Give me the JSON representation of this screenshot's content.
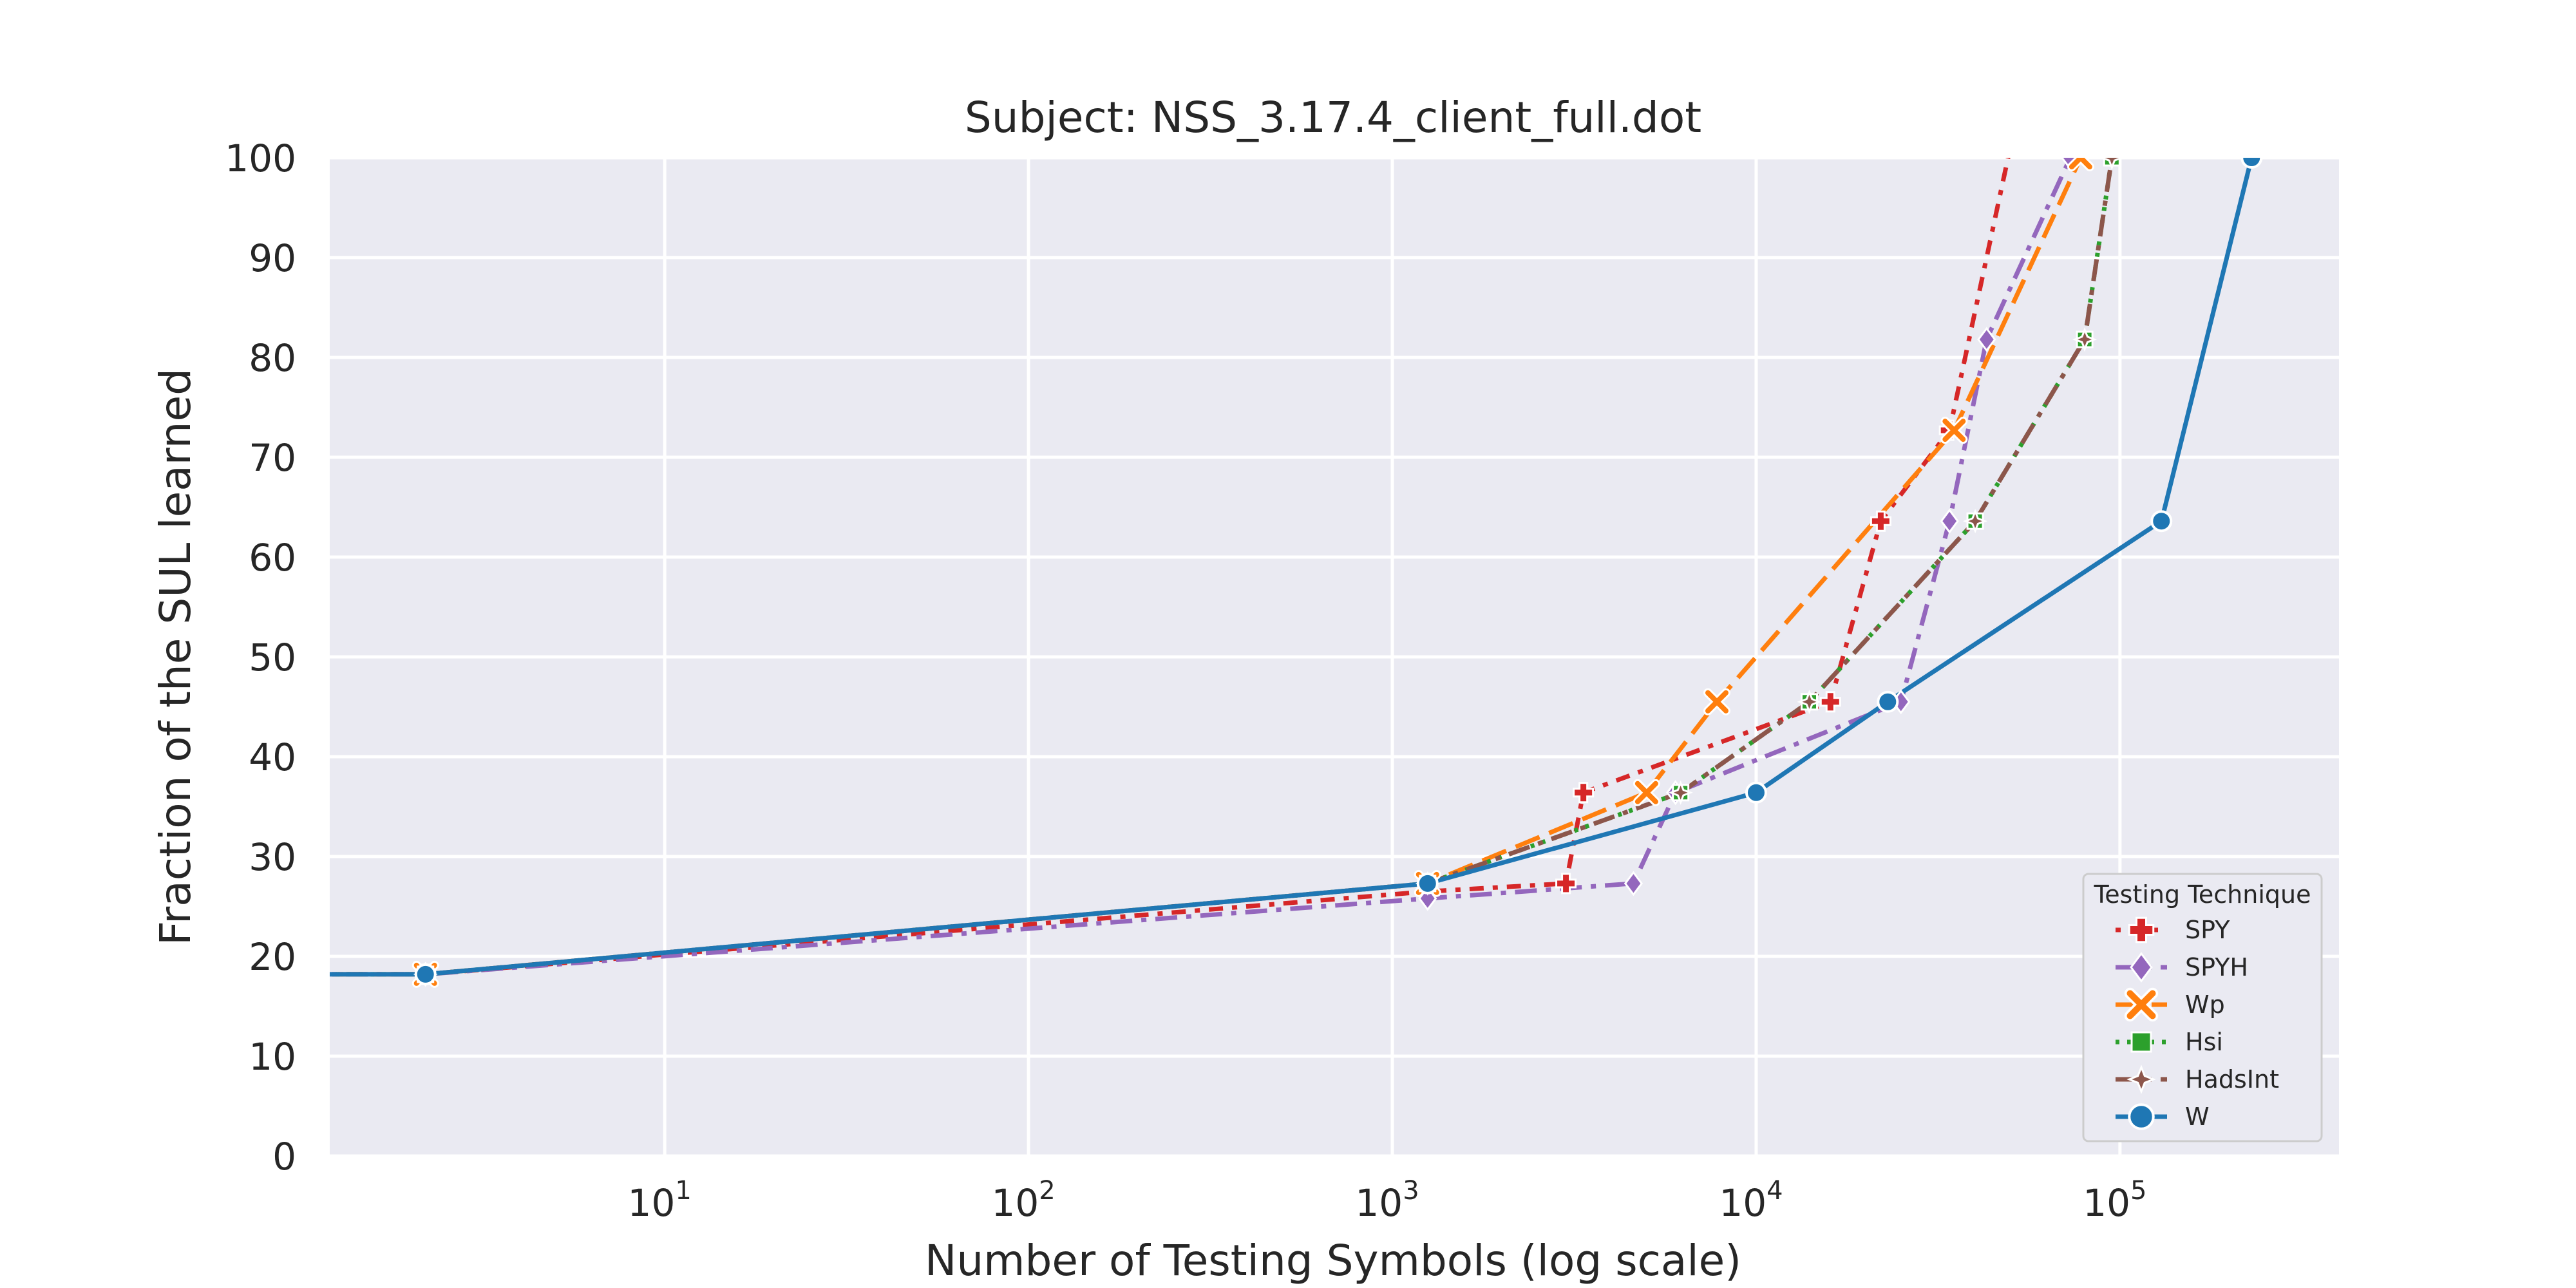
{
  "chart_data": {
    "type": "line",
    "title": "Subject: NSS_3.17.4_client_full.dot",
    "xlabel": "Number of Testing Symbols (log scale)",
    "ylabel": "Fraction of the SUL learned",
    "x_scale": "log",
    "xlim": [
      1.2,
      400000
    ],
    "ylim": [
      0,
      100
    ],
    "x_ticks": [
      {
        "value": 10,
        "base": "10",
        "exp": "1"
      },
      {
        "value": 100,
        "base": "10",
        "exp": "2"
      },
      {
        "value": 1000,
        "base": "10",
        "exp": "3"
      },
      {
        "value": 10000,
        "base": "10",
        "exp": "4"
      },
      {
        "value": 100000,
        "base": "10",
        "exp": "5"
      }
    ],
    "y_ticks": [
      "0",
      "10",
      "20",
      "30",
      "40",
      "50",
      "60",
      "70",
      "80",
      "90",
      "100"
    ],
    "grid": true,
    "legend": {
      "title": "Testing Technique",
      "position": "lower right"
    },
    "series": [
      {
        "name": "SPY",
        "color": "#d62728",
        "dash": "dotted-dash",
        "marker": "plus",
        "points": [
          [
            1,
            18.2
          ],
          [
            2.2,
            18.2
          ],
          [
            1250,
            26.5
          ],
          [
            3000,
            27.3
          ],
          [
            3350,
            36.4
          ],
          [
            16000,
            45.5
          ],
          [
            22000,
            63.6
          ],
          [
            34000,
            72.7
          ],
          [
            52000,
            104
          ]
        ]
      },
      {
        "name": "SPYH",
        "color": "#9467bd",
        "dash": "dashdot",
        "marker": "diamond",
        "points": [
          [
            1,
            18.2
          ],
          [
            2.2,
            18.2
          ],
          [
            1250,
            25.8
          ],
          [
            4600,
            27.3
          ],
          [
            6000,
            36.4
          ],
          [
            25000,
            45.5
          ],
          [
            34000,
            63.6
          ],
          [
            43000,
            81.8
          ],
          [
            73000,
            100
          ]
        ]
      },
      {
        "name": "Wp",
        "color": "#ff7f0e",
        "dash": "longdash",
        "marker": "x",
        "points": [
          [
            1,
            18.2
          ],
          [
            2.2,
            18.2
          ],
          [
            1250,
            27.3
          ],
          [
            5000,
            36.4
          ],
          [
            7800,
            45.5
          ],
          [
            35000,
            72.7
          ],
          [
            78000,
            100
          ]
        ]
      },
      {
        "name": "Hsi",
        "color": "#2ca02c",
        "dash": "dotted",
        "marker": "square",
        "points": [
          [
            1,
            18.2
          ],
          [
            2.2,
            18.2
          ],
          [
            1250,
            27.3
          ],
          [
            6200,
            36.4
          ],
          [
            14000,
            45.5
          ],
          [
            40000,
            63.6
          ],
          [
            80000,
            81.8
          ],
          [
            95000,
            100
          ]
        ]
      },
      {
        "name": "HadsInt",
        "color": "#8c564b",
        "dash": "dashdot",
        "marker": "star",
        "points": [
          [
            1,
            18.2
          ],
          [
            2.2,
            18.2
          ],
          [
            1250,
            27.3
          ],
          [
            6200,
            36.4
          ],
          [
            14000,
            45.5
          ],
          [
            40000,
            63.6
          ],
          [
            80000,
            81.8
          ],
          [
            95000,
            100
          ]
        ]
      },
      {
        "name": "W",
        "color": "#1f77b4",
        "dash": "solid",
        "marker": "circle",
        "points": [
          [
            1,
            18.2
          ],
          [
            2.2,
            18.2
          ],
          [
            1250,
            27.3
          ],
          [
            10000,
            36.4
          ],
          [
            23000,
            45.5
          ],
          [
            130000,
            63.6
          ],
          [
            230000,
            100
          ]
        ]
      }
    ]
  }
}
